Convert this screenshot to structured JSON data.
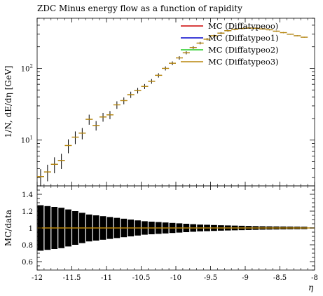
{
  "chart_data": [
    {
      "type": "scatter",
      "title": "ZDC Minus energy flow as a function of rapidity",
      "xlabel": "η",
      "ylabel": "1/N, dE/dη [GeV]",
      "yscale": "log",
      "xlim": [
        -12,
        -8
      ],
      "ylim": [
        2.3,
        500
      ],
      "x_ticks": [
        "-12",
        "-11.5",
        "-11",
        "-10.5",
        "-10",
        "-9.5",
        "-9",
        "-8.5",
        "-8"
      ],
      "y_ticks": [
        "10^1",
        "10^2"
      ],
      "legend_position": "top-right",
      "series": [
        {
          "name": "MC (Diffatypeoo)",
          "color": "#cc0000"
        },
        {
          "name": "MC (Diffatypeo1)",
          "color": "#0000cc"
        },
        {
          "name": "MC (Diffatypeo2)",
          "color": "#22cc22"
        },
        {
          "name": "MC (Diffatypeo3)",
          "color": "#b8860b"
        }
      ],
      "points": {
        "x": [
          -11.95,
          -11.85,
          -11.75,
          -11.65,
          -11.55,
          -11.45,
          -11.35,
          -11.25,
          -11.15,
          -11.05,
          -10.95,
          -10.85,
          -10.75,
          -10.65,
          -10.55,
          -10.45,
          -10.35,
          -10.25,
          -10.15,
          -10.05,
          -9.95,
          -9.85,
          -9.75,
          -9.65,
          -9.55,
          -9.45,
          -9.35,
          -9.25,
          -9.15,
          -9.05,
          -8.95,
          -8.85,
          -8.75,
          -8.65,
          -8.55,
          -8.45,
          -8.35,
          -8.25,
          -8.15
        ],
        "y": [
          3.1,
          3.6,
          4.6,
          5.2,
          8.4,
          11.0,
          12.5,
          19.5,
          16.0,
          21.0,
          22.5,
          31.0,
          35.5,
          43.0,
          49.0,
          56.0,
          66.0,
          80.0,
          100.0,
          118.0,
          140.0,
          165.0,
          195.0,
          225.0,
          255.0,
          285.0,
          310.0,
          335.0,
          350.0,
          360.0,
          365.0,
          362.0,
          355.0,
          345.0,
          330.0,
          315.0,
          300.0,
          285.0,
          272.0
        ],
        "yerr_rel": [
          0.27,
          0.26,
          0.25,
          0.24,
          0.22,
          0.2,
          0.18,
          0.16,
          0.15,
          0.14,
          0.13,
          0.12,
          0.11,
          0.1,
          0.09,
          0.08,
          0.075,
          0.07,
          0.065,
          0.06,
          0.055,
          0.05,
          0.045,
          0.04,
          0.038,
          0.035,
          0.032,
          0.03,
          0.028,
          0.026,
          0.024,
          0.022,
          0.02,
          0.019,
          0.018,
          0.017,
          0.016,
          0.015,
          0.014
        ]
      }
    },
    {
      "type": "line",
      "xlabel": "η",
      "ylabel": "MC/data",
      "xlim": [
        -12,
        -8
      ],
      "ylim": [
        0.5,
        1.5
      ],
      "y_ticks": [
        "0.6",
        "0.8",
        "1",
        "1.2",
        "1.4"
      ],
      "reference_line": 1.0,
      "band_color": "#000000",
      "series_line_color": "#b8860b"
    }
  ]
}
